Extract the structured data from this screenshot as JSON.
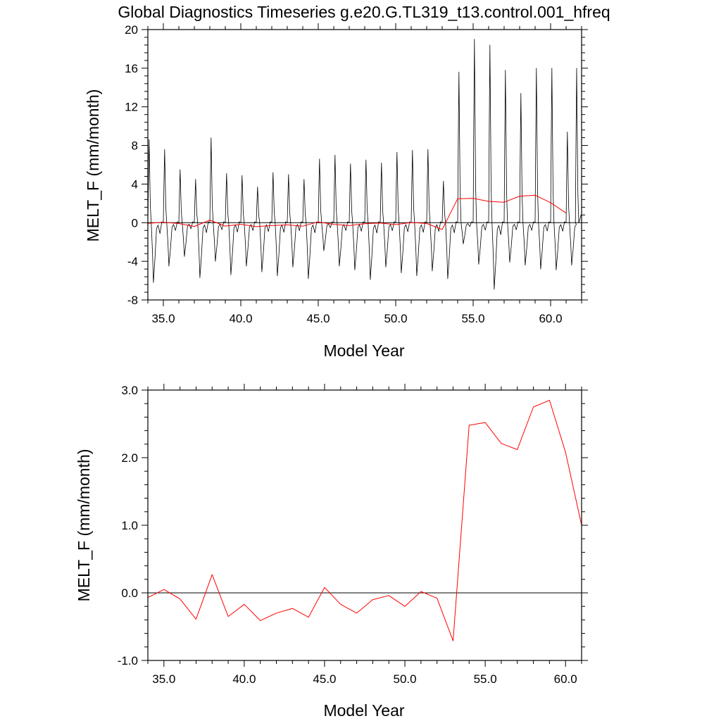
{
  "title": "Global Diagnostics Timeseries g.e20.G.TL319_t13.control.001_hfreq",
  "colors": {
    "monthly": "#000000",
    "annual": "#ff0000",
    "axes": "#000000",
    "background": "#ffffff"
  },
  "chart_data": [
    {
      "type": "line",
      "xlabel": "Model Year",
      "ylabel": "MELT_F (mm/month)",
      "xlim": [
        34,
        62
      ],
      "ylim": [
        -8,
        20
      ],
      "x_ticks": [
        35,
        40,
        45,
        50,
        55,
        60
      ],
      "x_tick_labels": [
        "35.0",
        "40.0",
        "45.0",
        "50.0",
        "55.0",
        "60.0"
      ],
      "y_ticks": [
        -8,
        -4,
        0,
        4,
        8,
        12,
        16,
        20
      ],
      "y_tick_labels": [
        "-8",
        "-4",
        "0",
        "4",
        "8",
        "12",
        "16",
        "20"
      ],
      "grid": false,
      "reference_line_y": 0,
      "series": [
        {
          "color": "#000000",
          "resolution": "monthly",
          "yearly_peaks": [
            {
              "year": 34,
              "peak": 8.6,
              "trough": -6.2
            },
            {
              "year": 35,
              "peak": 7.6,
              "trough": -4.5
            },
            {
              "year": 36,
              "peak": 5.5,
              "trough": -3.5
            },
            {
              "year": 37,
              "peak": 4.5,
              "trough": -5.7
            },
            {
              "year": 38,
              "peak": 8.8,
              "trough": -4.0
            },
            {
              "year": 39,
              "peak": 5.1,
              "trough": -5.4
            },
            {
              "year": 40,
              "peak": 4.9,
              "trough": -4.5
            },
            {
              "year": 41,
              "peak": 3.7,
              "trough": -5.1
            },
            {
              "year": 42,
              "peak": 5.2,
              "trough": -5.5
            },
            {
              "year": 43,
              "peak": 5.0,
              "trough": -4.6
            },
            {
              "year": 44,
              "peak": 4.5,
              "trough": -5.8
            },
            {
              "year": 45,
              "peak": 6.6,
              "trough": -2.9
            },
            {
              "year": 46,
              "peak": 7.0,
              "trough": -4.5
            },
            {
              "year": 47,
              "peak": 6.1,
              "trough": -4.9
            },
            {
              "year": 48,
              "peak": 6.5,
              "trough": -5.9
            },
            {
              "year": 49,
              "peak": 6.2,
              "trough": -4.6
            },
            {
              "year": 50,
              "peak": 7.3,
              "trough": -5.2
            },
            {
              "year": 51,
              "peak": 7.5,
              "trough": -5.5
            },
            {
              "year": 52,
              "peak": 7.6,
              "trough": -5.0
            },
            {
              "year": 53,
              "peak": 4.3,
              "trough": -5.8
            },
            {
              "year": 54,
              "peak": 15.6,
              "trough": -2.2
            },
            {
              "year": 55,
              "peak": 19.0,
              "trough": -4.3
            },
            {
              "year": 56,
              "peak": 18.4,
              "trough": -6.9
            },
            {
              "year": 57,
              "peak": 15.8,
              "trough": -4.1
            },
            {
              "year": 58,
              "peak": 13.4,
              "trough": -4.4
            },
            {
              "year": 59,
              "peak": 16.0,
              "trough": -4.8
            },
            {
              "year": 60,
              "peak": 16.0,
              "trough": -4.9
            },
            {
              "year": 61,
              "peak": 9.4,
              "trough": -4.4
            },
            {
              "year": 61.6,
              "peak": 16.0,
              "trough": 0.8
            }
          ]
        },
        {
          "color": "#ff0000",
          "resolution": "annual",
          "x": [
            34,
            35,
            36,
            37,
            38,
            39,
            40,
            41,
            42,
            43,
            44,
            45,
            46,
            47,
            48,
            49,
            50,
            51,
            52,
            53,
            54,
            55,
            56,
            57,
            58,
            59,
            60,
            61
          ],
          "y": [
            -0.07,
            0.05,
            -0.09,
            -0.39,
            0.27,
            -0.35,
            -0.17,
            -0.41,
            -0.3,
            -0.23,
            -0.36,
            0.08,
            -0.17,
            -0.3,
            -0.1,
            -0.04,
            -0.2,
            0.02,
            -0.08,
            -0.71,
            2.48,
            2.52,
            2.21,
            2.12,
            2.75,
            2.85,
            2.08,
            1.0
          ]
        }
      ]
    },
    {
      "type": "line",
      "xlabel": "Model Year",
      "ylabel": "MELT_F (mm/month)",
      "xlim": [
        34,
        61
      ],
      "ylim": [
        -1.0,
        3.0
      ],
      "x_ticks": [
        35,
        40,
        45,
        50,
        55,
        60
      ],
      "x_tick_labels": [
        "35.0",
        "40.0",
        "45.0",
        "50.0",
        "55.0",
        "60.0"
      ],
      "y_ticks": [
        -1.0,
        0.0,
        1.0,
        2.0,
        3.0
      ],
      "y_tick_labels": [
        "-1.0",
        "0.0",
        "1.0",
        "2.0",
        "3.0"
      ],
      "grid": false,
      "reference_line_y": 0,
      "series": [
        {
          "color": "#ff0000",
          "resolution": "annual",
          "x": [
            34,
            35,
            36,
            37,
            38,
            39,
            40,
            41,
            42,
            43,
            44,
            45,
            46,
            47,
            48,
            49,
            50,
            51,
            52,
            53,
            54,
            55,
            56,
            57,
            58,
            59,
            60,
            61
          ],
          "y": [
            -0.07,
            0.05,
            -0.09,
            -0.39,
            0.27,
            -0.35,
            -0.17,
            -0.41,
            -0.3,
            -0.23,
            -0.36,
            0.08,
            -0.17,
            -0.3,
            -0.1,
            -0.04,
            -0.2,
            0.02,
            -0.08,
            -0.71,
            2.48,
            2.52,
            2.21,
            2.12,
            2.75,
            2.85,
            2.08,
            1.0
          ]
        }
      ]
    }
  ]
}
